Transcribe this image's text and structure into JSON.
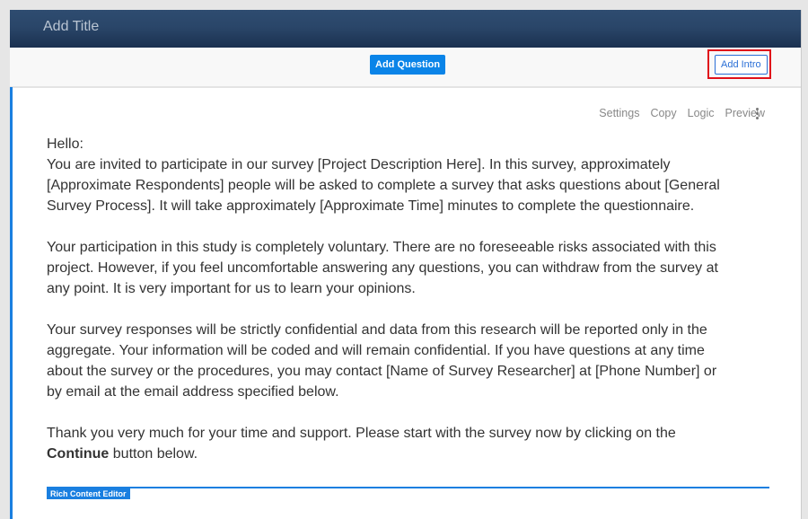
{
  "header": {
    "title": "Add Title"
  },
  "toolbar": {
    "add_question": "Add Question",
    "add_intro": "Add Intro"
  },
  "actions": {
    "settings": "Settings",
    "copy": "Copy",
    "logic": "Logic",
    "preview": "Preview",
    "more_icon": "vertical-ellipsis"
  },
  "intro": {
    "greeting": "Hello:",
    "p1": [
      "You are invited to participate in our survey [Project Description Here]. In this survey, approximately",
      "[Approximate Respondents] people will be asked to complete a survey that asks questions about [General",
      "Survey Process]. It will take approximately [Approximate Time] minutes to complete the questionnaire."
    ],
    "p2": [
      "Your participation in this study is completely voluntary. There are no foreseeable risks associated with this",
      "project. However, if you feel uncomfortable answering any questions, you can withdraw from the survey at",
      "any point. It is very important for us to learn your opinions."
    ],
    "p3": [
      "Your survey responses will be strictly confidential and data from this research will be reported only in the",
      "aggregate. Your information will be coded and will remain confidential. If you have questions at any time",
      "about the survey or the procedures, you may contact [Name of Survey Researcher] at [Phone Number] or",
      "by email at the email address specified below."
    ],
    "p4_line1": "Thank you very much for your time and support. Please start with the survey now by clicking on the",
    "p4_bold": "Continue",
    "p4_rest": " button below."
  },
  "editor": {
    "label": "Rich Content Editor"
  },
  "colors": {
    "accent": "#0a84e8",
    "highlight": "#e0101a",
    "header": "#2a4669"
  }
}
